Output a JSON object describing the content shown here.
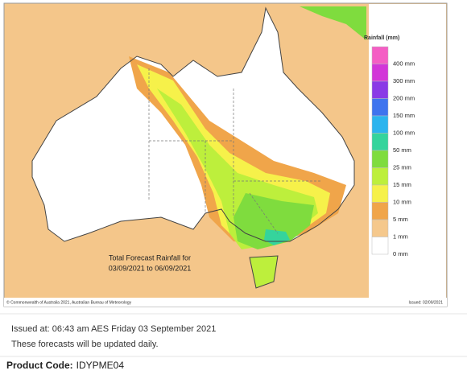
{
  "map": {
    "title_lines": [
      "Total Forecast Rainfall for",
      "03/09/2021 to 06/09/2021"
    ],
    "legend": {
      "title": "Rainfall (mm)",
      "items": [
        {
          "label": "400 mm",
          "color": "#f45ec4"
        },
        {
          "label": "300 mm",
          "color": "#d236d8"
        },
        {
          "label": "200 mm",
          "color": "#8a3ae6"
        },
        {
          "label": "150 mm",
          "color": "#3f74ee"
        },
        {
          "label": "100 mm",
          "color": "#2cb4ee"
        },
        {
          "label": "50 mm",
          "color": "#35d49c"
        },
        {
          "label": "25 mm",
          "color": "#7fdc3e"
        },
        {
          "label": "15 mm",
          "color": "#bdef3c"
        },
        {
          "label": "10 mm",
          "color": "#f6f14a"
        },
        {
          "label": "5 mm",
          "color": "#f0a54a"
        },
        {
          "label": "1 mm",
          "color": "#f5c88c"
        },
        {
          "label": "0 mm",
          "color": "#ffffff"
        }
      ]
    },
    "footer_left": "© Commonwealth of Australia 2021, Australian Bureau of Meteorology",
    "footer_right": "Issued: 02/09/2021"
  },
  "issued": "Issued at: 06:43 am AES Friday 03 September 2021",
  "note": "These forecasts will be updated daily.",
  "product_code": {
    "label": "Product Code:",
    "value": "IDYPME04"
  }
}
